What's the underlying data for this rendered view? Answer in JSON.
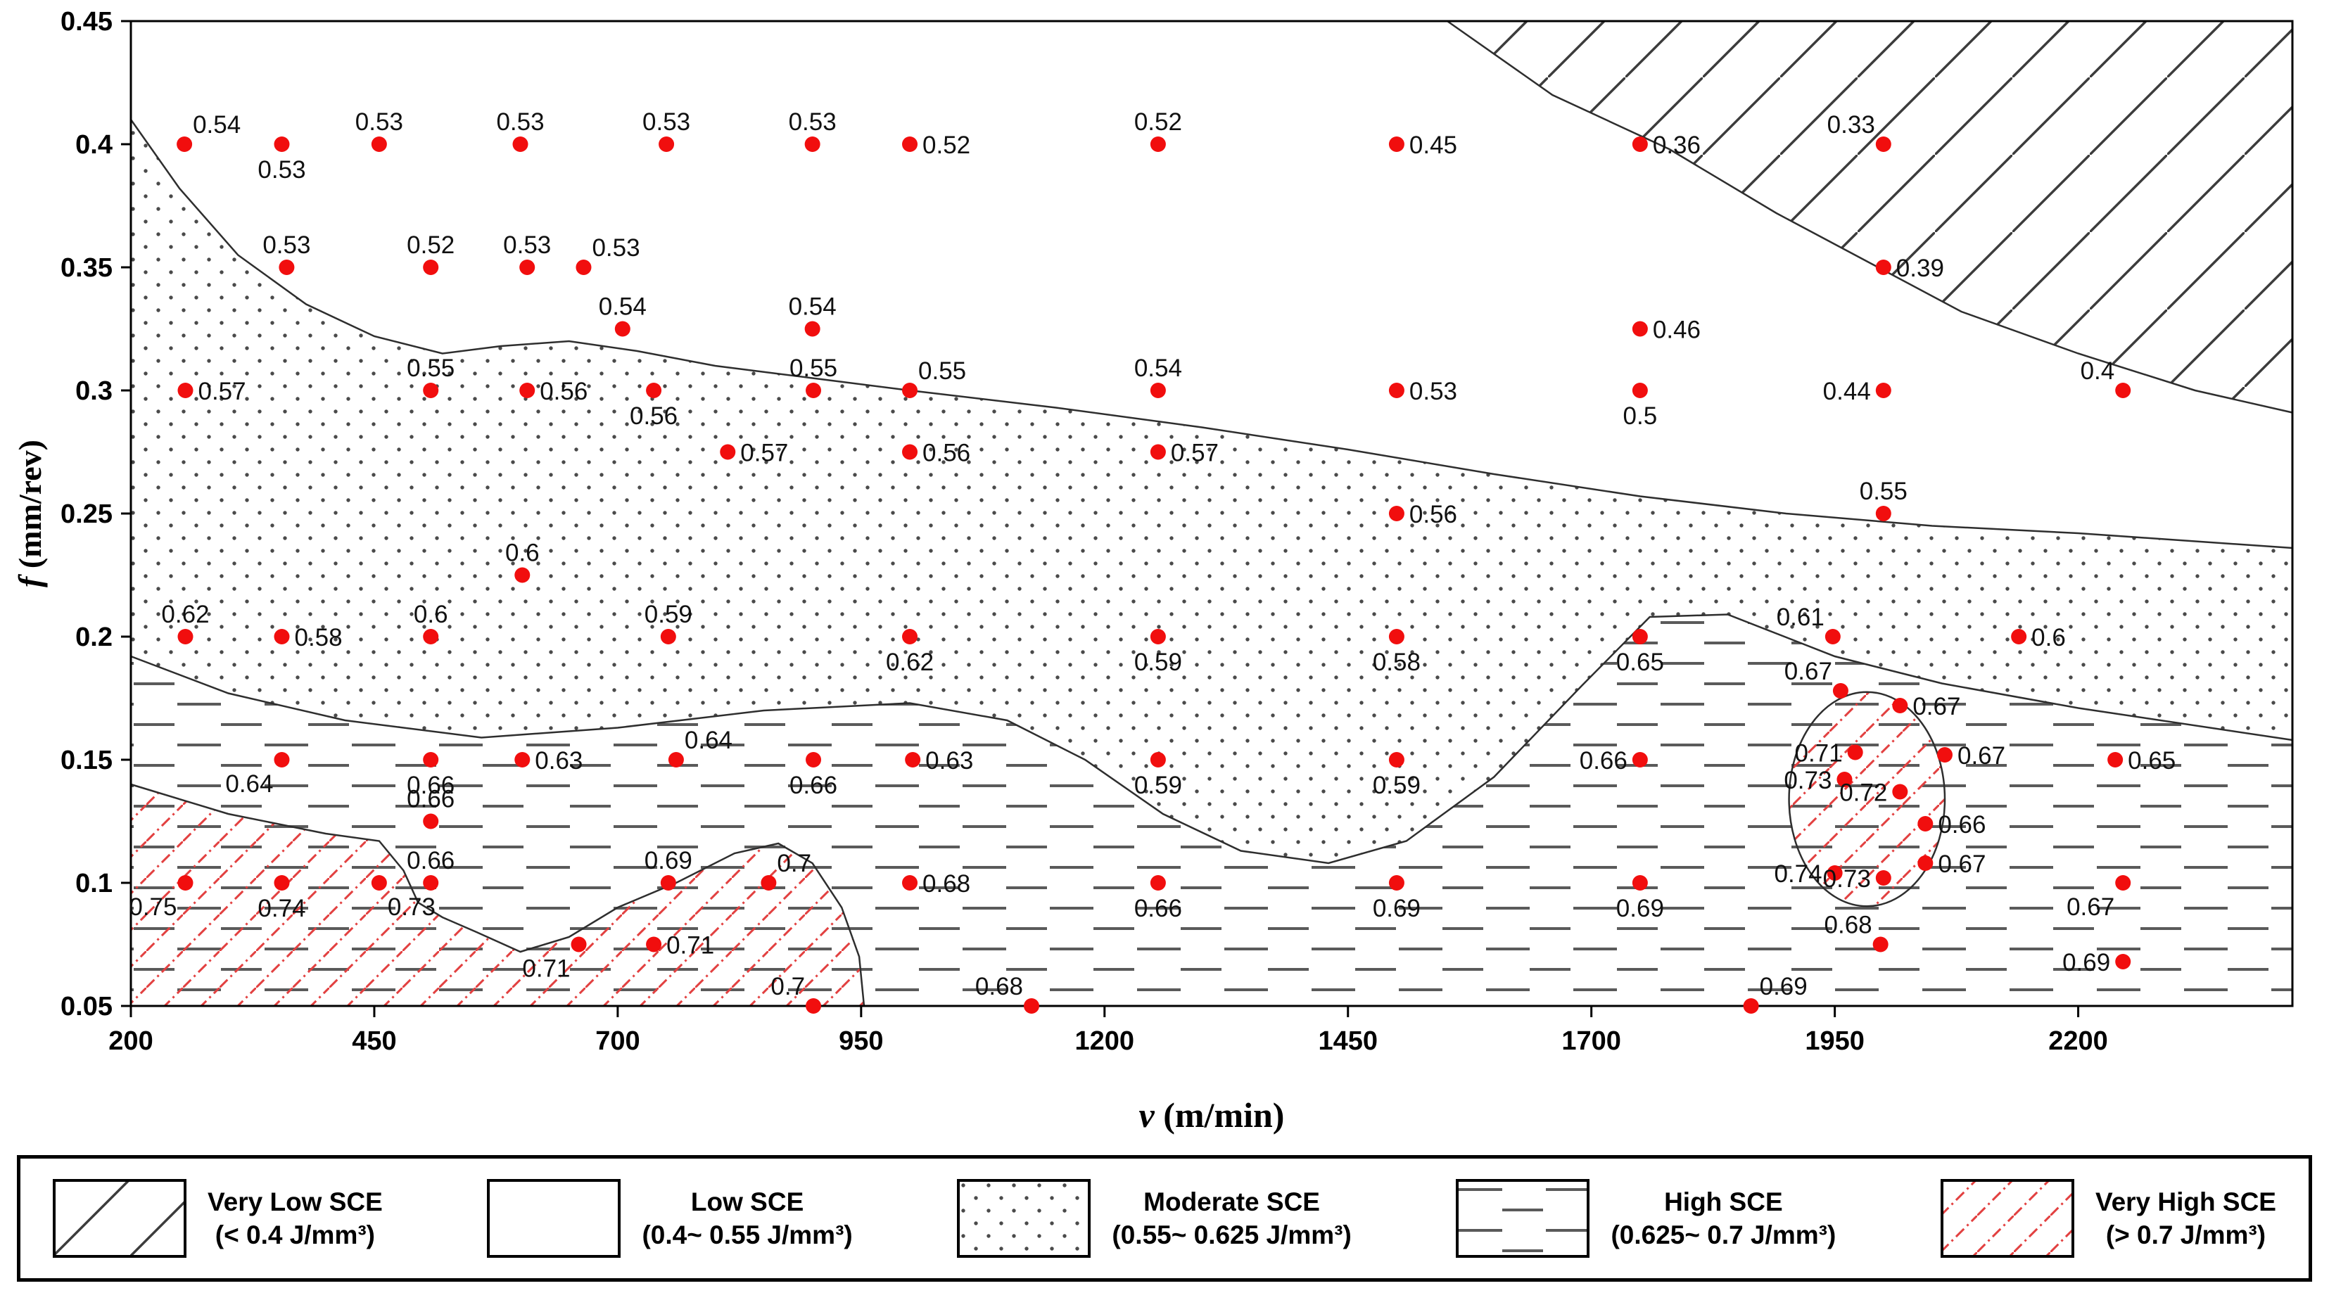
{
  "colors": {
    "point": "#f10e0e",
    "contour": "#2e2e2e",
    "hatch_black": "#3c3c3c",
    "hatch_red": "#e24040",
    "pattern_dot": "#4a4a4a",
    "pattern_dash": "#5a5a5a",
    "axis": "#000000",
    "label": "#111111"
  },
  "chart_data": {
    "type": "scatter",
    "title": "",
    "xlabel_symbol": "v",
    "xlabel_unit": "(m/min)",
    "ylabel_symbol": "f",
    "ylabel_unit": "(mm/rev)",
    "xlim": [
      200,
      2420
    ],
    "ylim": [
      0.05,
      0.45
    ],
    "x_ticks": [
      200,
      450,
      700,
      950,
      1200,
      1450,
      1700,
      1950,
      2200
    ],
    "y_ticks": [
      "0.45",
      "0.4",
      "0.35",
      "0.3",
      "0.25",
      "0.2",
      "0.15",
      "0.1",
      "0.05"
    ],
    "points": [
      [
        255,
        0.4,
        "0.54",
        "ar"
      ],
      [
        355,
        0.4,
        "0.53",
        "b"
      ],
      [
        455,
        0.4,
        "0.53",
        "a"
      ],
      [
        600,
        0.4,
        "0.53",
        "a"
      ],
      [
        750,
        0.4,
        "0.53",
        "a"
      ],
      [
        900,
        0.4,
        "0.53",
        "a"
      ],
      [
        1000,
        0.4,
        "0.52",
        "r"
      ],
      [
        1255,
        0.4,
        "0.52",
        "a"
      ],
      [
        1500,
        0.4,
        "0.45",
        "r"
      ],
      [
        1750,
        0.4,
        "0.36",
        "r"
      ],
      [
        2000,
        0.4,
        "0.33",
        "al"
      ],
      [
        360,
        0.35,
        "0.53",
        "a"
      ],
      [
        508,
        0.35,
        "0.52",
        "a"
      ],
      [
        607,
        0.35,
        "0.53",
        "a"
      ],
      [
        665,
        0.35,
        "0.53",
        "ar"
      ],
      [
        2000,
        0.35,
        "0.39",
        "r"
      ],
      [
        705,
        0.325,
        "0.54",
        "a"
      ],
      [
        900,
        0.325,
        "0.54",
        "a"
      ],
      [
        1750,
        0.325,
        "0.46",
        "r"
      ],
      [
        256,
        0.3,
        "0.57",
        "r"
      ],
      [
        508,
        0.3,
        "0.55",
        "a"
      ],
      [
        607,
        0.3,
        "0.56",
        "r"
      ],
      [
        737,
        0.3,
        "0.56",
        "b"
      ],
      [
        901,
        0.3,
        "0.55",
        "a"
      ],
      [
        1000,
        0.3,
        "0.55",
        "ar"
      ],
      [
        1255,
        0.3,
        "0.54",
        "a"
      ],
      [
        1500,
        0.3,
        "0.53",
        "r"
      ],
      [
        1750,
        0.3,
        "0.5",
        "b"
      ],
      [
        2000,
        0.3,
        "0.44",
        "l"
      ],
      [
        2246,
        0.3,
        "0.4",
        "al"
      ],
      [
        813,
        0.275,
        "0.57",
        "r"
      ],
      [
        1000,
        0.275,
        "0.56",
        "r"
      ],
      [
        1255,
        0.275,
        "0.57",
        "r"
      ],
      [
        1500,
        0.25,
        "0.56",
        "r"
      ],
      [
        2000,
        0.25,
        "0.55",
        "a"
      ],
      [
        602,
        0.225,
        "0.6",
        "a"
      ],
      [
        256,
        0.2,
        "0.62",
        "a"
      ],
      [
        355,
        0.2,
        "0.58",
        "r"
      ],
      [
        508,
        0.2,
        "0.6",
        "a"
      ],
      [
        752,
        0.2,
        "0.59",
        "a"
      ],
      [
        1000,
        0.2,
        "0.62",
        "b"
      ],
      [
        1255,
        0.2,
        "0.59",
        "b"
      ],
      [
        1500,
        0.2,
        "0.58",
        "b"
      ],
      [
        1750,
        0.2,
        "0.65",
        "b"
      ],
      [
        1948,
        0.2,
        "0.61",
        "al"
      ],
      [
        2139,
        0.2,
        "0.6",
        "r"
      ],
      [
        1956,
        0.178,
        "0.67",
        "al"
      ],
      [
        2017,
        0.172,
        "0.67",
        "r"
      ],
      [
        355,
        0.15,
        "0.64",
        "bl"
      ],
      [
        508,
        0.15,
        "0.66",
        "b"
      ],
      [
        602,
        0.15,
        "0.63",
        "r"
      ],
      [
        760,
        0.15,
        "0.64",
        "ar"
      ],
      [
        901,
        0.15,
        "0.66",
        "b"
      ],
      [
        1003,
        0.15,
        "0.63",
        "r"
      ],
      [
        1255,
        0.15,
        "0.59",
        "b"
      ],
      [
        1500,
        0.15,
        "0.59",
        "b"
      ],
      [
        1750,
        0.15,
        "0.66",
        "l"
      ],
      [
        1971,
        0.153,
        "0.71",
        "l"
      ],
      [
        1960,
        0.142,
        "0.73",
        "l"
      ],
      [
        2017,
        0.137,
        "0.72",
        "l"
      ],
      [
        2063,
        0.152,
        "0.67",
        "r"
      ],
      [
        2238,
        0.15,
        "0.65",
        "r"
      ],
      [
        508,
        0.125,
        "0.66",
        "a"
      ],
      [
        2043,
        0.124,
        "0.66",
        "r"
      ],
      [
        256,
        0.1,
        "0.75",
        "bl"
      ],
      [
        355,
        0.1,
        "0.74",
        "b"
      ],
      [
        455,
        0.1,
        "0.73",
        "br"
      ],
      [
        508,
        0.1,
        "0.66",
        "a"
      ],
      [
        752,
        0.1,
        "0.69",
        "a"
      ],
      [
        855,
        0.1,
        "0.7",
        "ar"
      ],
      [
        1000,
        0.1,
        "0.68",
        "r"
      ],
      [
        1255,
        0.1,
        "0.66",
        "b"
      ],
      [
        1500,
        0.1,
        "0.69",
        "b"
      ],
      [
        1750,
        0.1,
        "0.69",
        "b"
      ],
      [
        1950,
        0.104,
        "0.74",
        "l"
      ],
      [
        2000,
        0.102,
        "0.73",
        "l"
      ],
      [
        2043,
        0.108,
        "0.67",
        "r"
      ],
      [
        2246,
        0.1,
        "0.67",
        "bl"
      ],
      [
        660,
        0.075,
        "0.71",
        "bl"
      ],
      [
        737,
        0.075,
        "0.71",
        "r"
      ],
      [
        1997,
        0.075,
        "0.68",
        "al"
      ],
      [
        2246,
        0.068,
        "0.69",
        "l"
      ],
      [
        901,
        0.05,
        "0.7",
        "al"
      ],
      [
        1125,
        0.05,
        "0.68",
        "al"
      ],
      [
        1864,
        0.05,
        "0.69",
        "ar"
      ]
    ],
    "regions": {
      "boundary_low_moderate": [
        [
          200,
          0.41
        ],
        [
          250,
          0.382
        ],
        [
          310,
          0.355
        ],
        [
          380,
          0.335
        ],
        [
          450,
          0.322
        ],
        [
          520,
          0.315
        ],
        [
          580,
          0.318
        ],
        [
          650,
          0.32
        ],
        [
          720,
          0.316
        ],
        [
          800,
          0.31
        ],
        [
          900,
          0.305
        ],
        [
          1000,
          0.3
        ],
        [
          1150,
          0.293
        ],
        [
          1300,
          0.285
        ],
        [
          1450,
          0.276
        ],
        [
          1600,
          0.266
        ],
        [
          1750,
          0.257
        ],
        [
          1900,
          0.25
        ],
        [
          2050,
          0.245
        ],
        [
          2200,
          0.242
        ],
        [
          2420,
          0.236
        ]
      ],
      "boundary_moderate_high": [
        [
          200,
          0.192
        ],
        [
          300,
          0.177
        ],
        [
          420,
          0.166
        ],
        [
          560,
          0.159
        ],
        [
          700,
          0.163
        ],
        [
          850,
          0.17
        ],
        [
          1000,
          0.173
        ],
        [
          1100,
          0.166
        ],
        [
          1180,
          0.15
        ],
        [
          1260,
          0.128
        ],
        [
          1340,
          0.113
        ],
        [
          1430,
          0.108
        ],
        [
          1510,
          0.117
        ],
        [
          1600,
          0.143
        ],
        [
          1690,
          0.18
        ],
        [
          1760,
          0.208
        ],
        [
          1840,
          0.209
        ],
        [
          1950,
          0.192
        ],
        [
          2060,
          0.181
        ],
        [
          2200,
          0.171
        ],
        [
          2420,
          0.158
        ]
      ],
      "boundary_very_low": [
        [
          1552,
          0.45
        ],
        [
          1660,
          0.42
        ],
        [
          1780,
          0.398
        ],
        [
          1890,
          0.372
        ],
        [
          1985,
          0.352
        ],
        [
          2080,
          0.332
        ],
        [
          2200,
          0.315
        ],
        [
          2320,
          0.3
        ],
        [
          2420,
          0.291
        ]
      ],
      "very_high_blob": [
        [
          200,
          0.14
        ],
        [
          300,
          0.128
        ],
        [
          400,
          0.12
        ],
        [
          455,
          0.117
        ],
        [
          480,
          0.105
        ],
        [
          495,
          0.092
        ],
        [
          520,
          0.086
        ],
        [
          555,
          0.08
        ],
        [
          600,
          0.072
        ],
        [
          650,
          0.078
        ],
        [
          700,
          0.09
        ],
        [
          760,
          0.1
        ],
        [
          820,
          0.112
        ],
        [
          865,
          0.116
        ],
        [
          900,
          0.108
        ],
        [
          930,
          0.09
        ],
        [
          948,
          0.07
        ],
        [
          953,
          0.05
        ]
      ],
      "very_high_ellipse": {
        "cx": 1983,
        "cy": 0.134,
        "rx": 80,
        "ry": 0.0435
      }
    },
    "zone_thresholds": {
      "very_low_max": 0.4,
      "low_max": 0.55,
      "moderate_max": 0.625,
      "high_max": 0.7
    }
  },
  "legend": {
    "items": [
      {
        "name": "Very Low SCE",
        "range": "(< 0.4 J/mm³)",
        "pattern": "hatch-black"
      },
      {
        "name": "Low SCE",
        "range": "(0.4~ 0.55 J/mm³)",
        "pattern": "plain"
      },
      {
        "name": "Moderate SCE",
        "range": "(0.55~ 0.625 J/mm³)",
        "pattern": "dots"
      },
      {
        "name": "High SCE",
        "range": "(0.625~ 0.7 J/mm³)",
        "pattern": "dash"
      },
      {
        "name": "Very High SCE",
        "range": "(> 0.7 J/mm³)",
        "pattern": "hatch-red"
      }
    ]
  }
}
